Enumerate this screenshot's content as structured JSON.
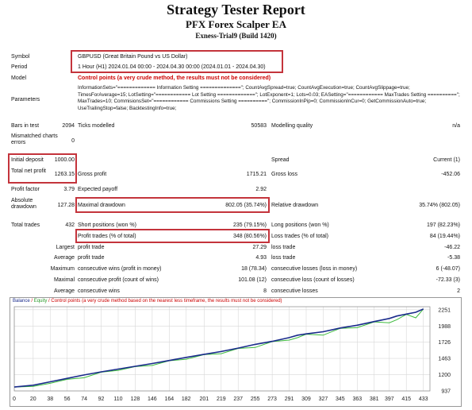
{
  "header": {
    "title": "Strategy Tester Report",
    "subtitle": "PFX Forex Scalper EA",
    "account": "Exness-Trial9 (Build 1420)"
  },
  "settings": {
    "symbol_label": "Symbol",
    "symbol_value": "GBPUSD (Great Britain Pound vs US Dollar)",
    "period_label": "Period",
    "period_value": "1 Hour (H1) 2024.01.04 00:00 - 2024.04.30 00:00 (2024.01.01 - 2024.04.30)",
    "model_label": "Model",
    "model_value": "Control points (a very crude method, the results must not be considered)",
    "parameters_label": "Parameters",
    "parameters_value": "InformationSets=\"============= Information Setting ==============\"; CountAvgSpread=true; CountAvgExecution=true; CountAvgSlippage=true; TimesForAverage=15; LotSetting=\"============ Lot Setting =============\"; LotExponent=1; Lots=0.03; EASetting=\"============ MaxTrades Setting ==========\"; MaxTrades=10; CommisionsSet=\"============ Commissions Setting ==========\"; CommissionInPip=0; CommissionInCur=0; GetCommissionAuto=true; UseTrailingStop=false; BacktestingInfo=true;"
  },
  "stats": {
    "bars_label": "Bars in test",
    "bars_value": "2094",
    "ticks_label": "Ticks modelled",
    "ticks_value": "50583",
    "quality_label": "Modelling quality",
    "quality_value": "n/a",
    "mismatched_label": "Mismatched charts errors",
    "mismatched_value": "0",
    "deposit_label": "Initial deposit",
    "deposit_value": "1000.00",
    "spread_label": "Spread",
    "spread_value": "Current (1)",
    "net_label": "Total net profit",
    "net_value": "1263.15",
    "gross_profit_label": "Gross profit",
    "gross_profit_value": "1715.21",
    "gross_loss_label": "Gross loss",
    "gross_loss_value": "-452.06",
    "pf_label": "Profit factor",
    "pf_value": "3.79",
    "payoff_label": "Expected payoff",
    "payoff_value": "2.92",
    "abs_dd_label": "Absolute drawdown",
    "abs_dd_value": "127.28",
    "max_dd_label": "Maximal drawdown",
    "max_dd_value": "802.05 (35.74%)",
    "rel_dd_label": "Relative drawdown",
    "rel_dd_value": "35.74% (802.05)",
    "trades_label": "Total trades",
    "trades_value": "432",
    "short_label": "Short positions (won %)",
    "short_value": "235 (79.15%)",
    "long_label": "Long positions (won %)",
    "long_value": "197 (82.23%)",
    "profit_trades_label": "Profit trades (% of total)",
    "profit_trades_value": "348 (80.56%)",
    "loss_trades_label": "Loss trades (% of total)",
    "loss_trades_value": "84 (19.44%)",
    "largest_label": "Largest",
    "largest_pt_label": "profit trade",
    "largest_pt_value": "27.29",
    "largest_lt_label": "loss trade",
    "largest_lt_value": "-46.22",
    "average_label": "Average",
    "average_pt_label": "profit trade",
    "average_pt_value": "4.93",
    "average_lt_label": "loss trade",
    "average_lt_value": "-5.38",
    "maximum_label": "Maximum",
    "max_cw_label": "consecutive wins (profit in money)",
    "max_cw_value": "18 (78.34)",
    "max_cl_label": "consecutive losses (loss in money)",
    "max_cl_value": "6 (-48.07)",
    "maximal_label": "Maximal",
    "maximal_cp_label": "consecutive profit (count of wins)",
    "maximal_cp_value": "101.08 (12)",
    "maximal_cl_label": "consecutive loss (count of losses)",
    "maximal_cl_value": "-72.33 (3)",
    "avg_label": "Average",
    "avg_cw_label": "consecutive wins",
    "avg_cw_value": "8",
    "avg_cl_label": "consecutive losses",
    "avg_cl_value": "2"
  },
  "chart": {
    "legend_balance": "Balance",
    "legend_sep1": " / ",
    "legend_equity": "Equity",
    "legend_sep2": " / ",
    "legend_rest": "Control points (a very crude method based on the nearest less timeframe, the results must not be considered)",
    "colors": {
      "balance": "#1a2b8c",
      "equity": "#3dbb3d",
      "legend_text": "#cc0000",
      "grid": "#d8d8d8"
    }
  },
  "chart_data": {
    "type": "line",
    "x_ticks": [
      0,
      20,
      38,
      56,
      74,
      92,
      110,
      128,
      146,
      164,
      182,
      201,
      219,
      237,
      255,
      273,
      291,
      309,
      327,
      345,
      363,
      381,
      397,
      415,
      433
    ],
    "y_ticks": [
      937,
      1200,
      1463,
      1726,
      1988,
      2251
    ],
    "xlim": [
      0,
      440
    ],
    "ylim": [
      937,
      2300
    ],
    "series": [
      {
        "name": "Balance",
        "x": [
          0,
          20,
          38,
          56,
          74,
          92,
          110,
          128,
          146,
          164,
          182,
          201,
          219,
          237,
          255,
          273,
          291,
          300,
          309,
          327,
          345,
          363,
          381,
          397,
          405,
          415,
          425,
          433
        ],
        "values": [
          1000,
          1030,
          1085,
          1140,
          1195,
          1245,
          1290,
          1335,
          1380,
          1430,
          1480,
          1530,
          1575,
          1630,
          1690,
          1740,
          1800,
          1840,
          1860,
          1895,
          1955,
          2000,
          2060,
          2110,
          2150,
          2180,
          2210,
          2263
        ]
      },
      {
        "name": "Equity",
        "x": [
          0,
          20,
          38,
          56,
          74,
          92,
          110,
          128,
          146,
          164,
          182,
          201,
          219,
          237,
          255,
          273,
          291,
          300,
          309,
          327,
          345,
          363,
          381,
          397,
          405,
          415,
          425,
          433
        ],
        "values": [
          1000,
          1010,
          1060,
          1125,
          1150,
          1240,
          1270,
          1330,
          1350,
          1425,
          1450,
          1525,
          1540,
          1625,
          1640,
          1735,
          1760,
          1800,
          1855,
          1840,
          1950,
          1960,
          2055,
          2040,
          2090,
          2175,
          2120,
          2263
        ]
      }
    ]
  }
}
